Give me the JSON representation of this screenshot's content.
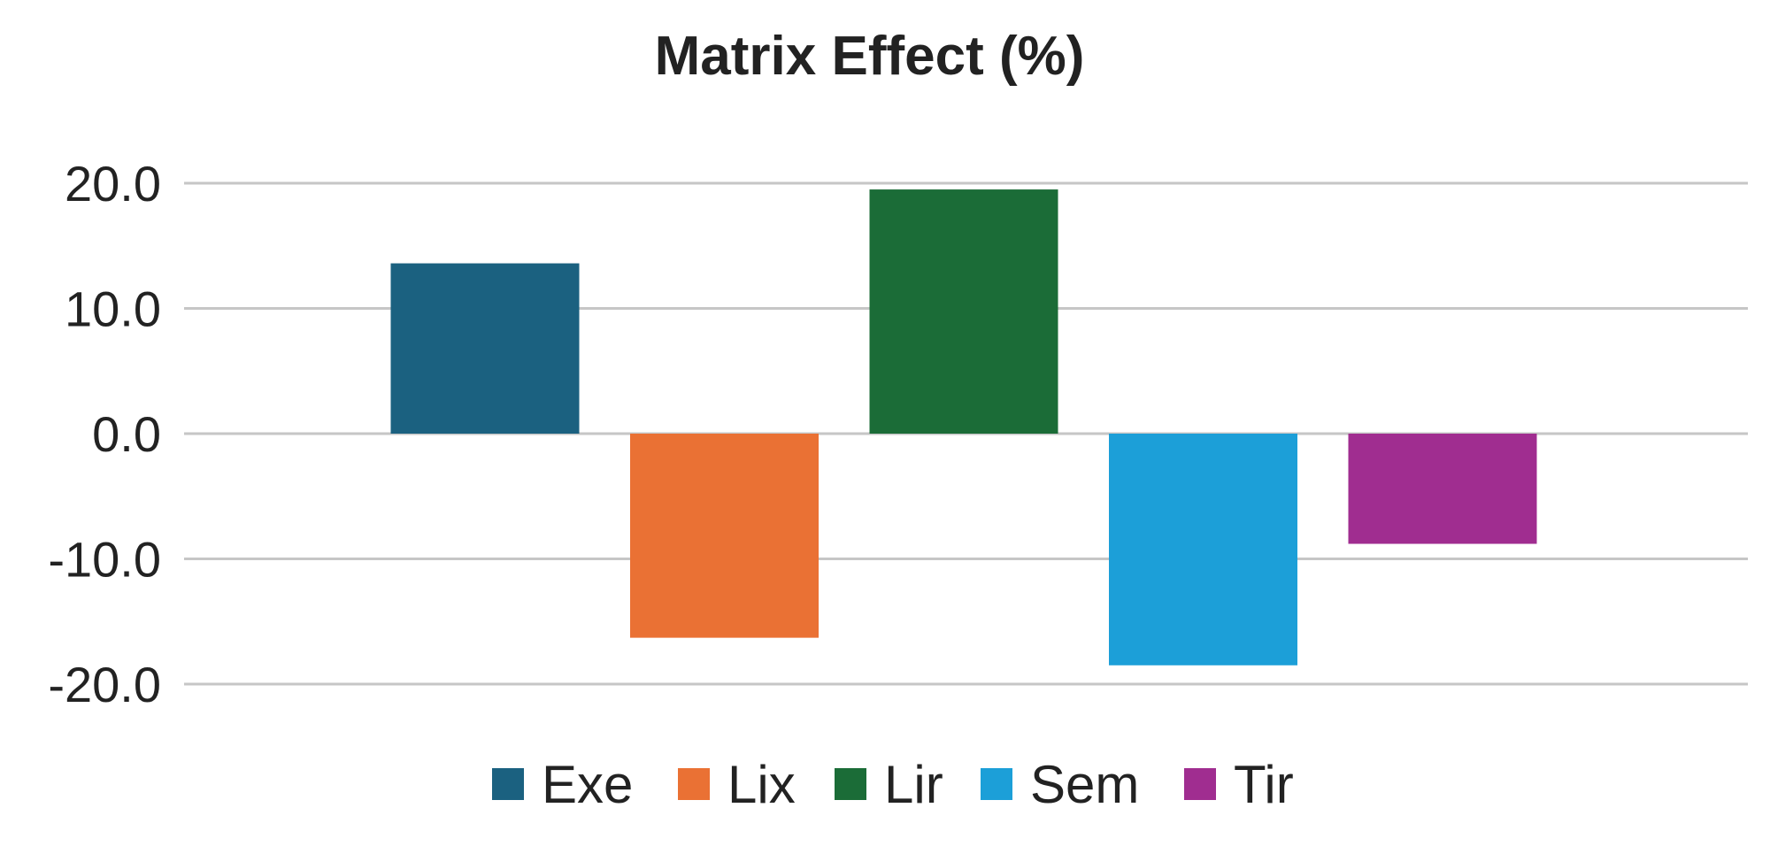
{
  "chart_data": {
    "type": "bar",
    "title": "Matrix Effect (%)",
    "xlabel": "",
    "ylabel": "",
    "ylim": [
      -20,
      20
    ],
    "yticks": [
      20,
      10,
      0,
      -10,
      -20
    ],
    "ytick_labels": [
      "20.0",
      "10.0",
      "0.0",
      "-10.0",
      "-20.0"
    ],
    "grid": true,
    "legend_position": "bottom",
    "categories": [
      "Exe",
      "Lix",
      "Lir",
      "Sem",
      "Tir"
    ],
    "values": [
      13.6,
      -16.3,
      19.5,
      -18.5,
      -8.8
    ],
    "colors": [
      "#1b6180",
      "#ea7134",
      "#1b6c37",
      "#1c9fd8",
      "#a02d90"
    ]
  }
}
